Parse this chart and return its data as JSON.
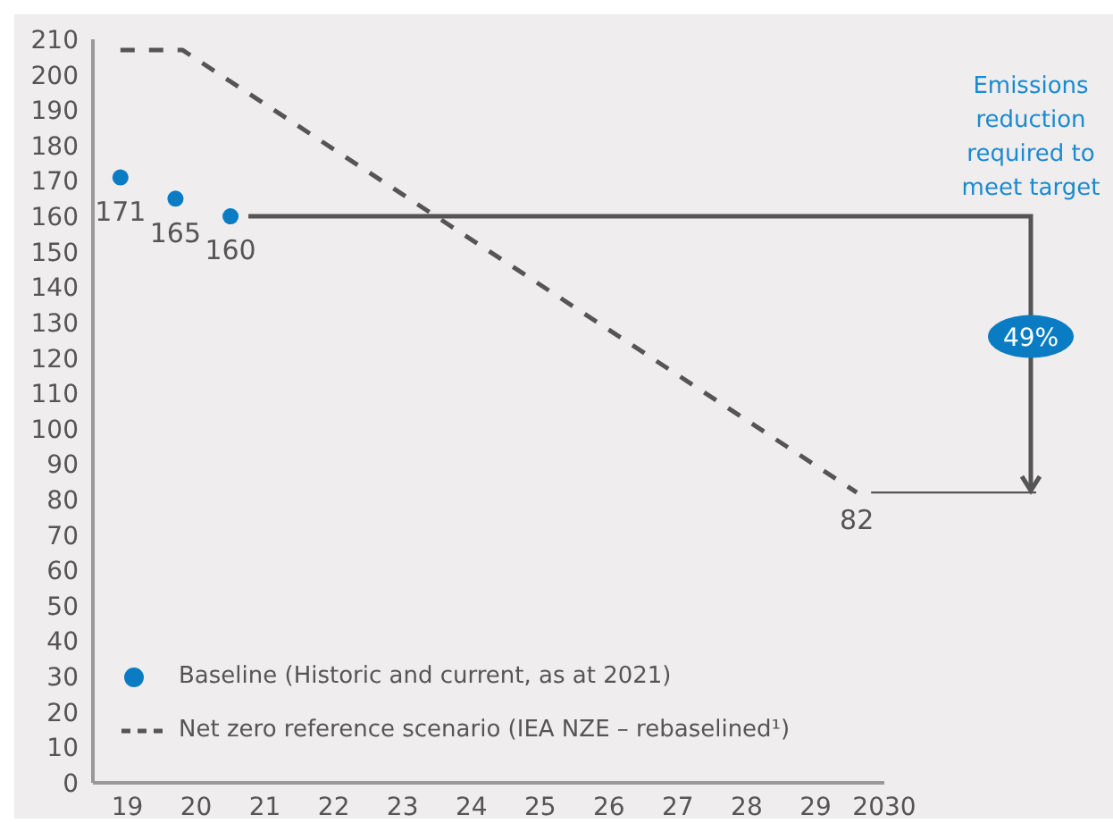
{
  "chart_data": {
    "type": "scatter",
    "annotations": [
      "Emissions reduction required to meet target",
      "49%"
    ],
    "xlim": [
      2018.5,
      2030
    ],
    "xticks": [
      {
        "value": 2019,
        "label": "19"
      },
      {
        "value": 2020,
        "label": "20"
      },
      {
        "value": 2021,
        "label": "21"
      },
      {
        "value": 2022,
        "label": "22"
      },
      {
        "value": 2023,
        "label": "23"
      },
      {
        "value": 2024,
        "label": "24"
      },
      {
        "value": 2025,
        "label": "25"
      },
      {
        "value": 2026,
        "label": "26"
      },
      {
        "value": 2027,
        "label": "27"
      },
      {
        "value": 2028,
        "label": "28"
      },
      {
        "value": 2029,
        "label": "29"
      },
      2030
    ],
    "ylim": [
      0,
      210
    ],
    "yticks": [
      0,
      10,
      20,
      30,
      40,
      50,
      60,
      70,
      80,
      90,
      100,
      110,
      120,
      130,
      140,
      150,
      160,
      170,
      180,
      190,
      200,
      210
    ],
    "legend": "bottom left",
    "series": [
      {
        "name": "Baseline (Historic and current, as at 2021)",
        "color": "#0a7cc4",
        "marker": "circle",
        "x": [
          2018.9,
          2019.7,
          2020.5
        ],
        "values": [
          171,
          165,
          160
        ],
        "value_labels": [
          "171",
          "165",
          "160"
        ]
      },
      {
        "name": "Net zero reference scenario (IEA NZE – rebaselined¹)",
        "type": "line",
        "color": "#555555",
        "marker": "none",
        "line_style": "dashed",
        "x": [
          2018.9,
          2019.8,
          2029.6
        ],
        "values": [
          207,
          207,
          82
        ],
        "value_labels": [
          null,
          null,
          "82"
        ]
      }
    ]
  }
}
